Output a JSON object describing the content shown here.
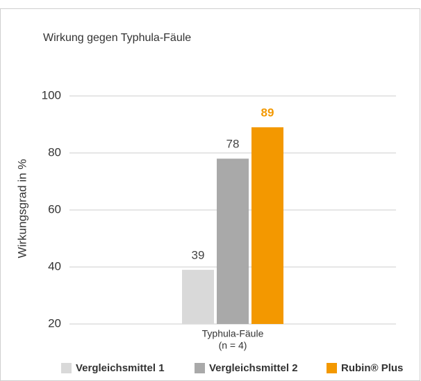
{
  "chart_data": {
    "type": "bar",
    "title": "Wirkung gegen Typhula-Fäule",
    "y_label": "Wirkungsgrad in %",
    "categories": [
      "Typhula-Fäule"
    ],
    "category_note": "(n = 4)",
    "series": [
      {
        "name": "Vergleichsmittel 1",
        "color": "#d9d9d9",
        "label_color": "#444444",
        "values": [
          39
        ]
      },
      {
        "name": "Vergleichsmittel 2",
        "color": "#a9a9a9",
        "label_color": "#444444",
        "values": [
          78
        ]
      },
      {
        "name": "Rubin® Plus",
        "color": "#f39800",
        "label_color": "#f39800",
        "values": [
          89
        ]
      }
    ],
    "ylim": [
      20,
      100
    ],
    "yticks": [
      20,
      40,
      60,
      80,
      100
    ],
    "grid": true,
    "legend": "bottom"
  }
}
